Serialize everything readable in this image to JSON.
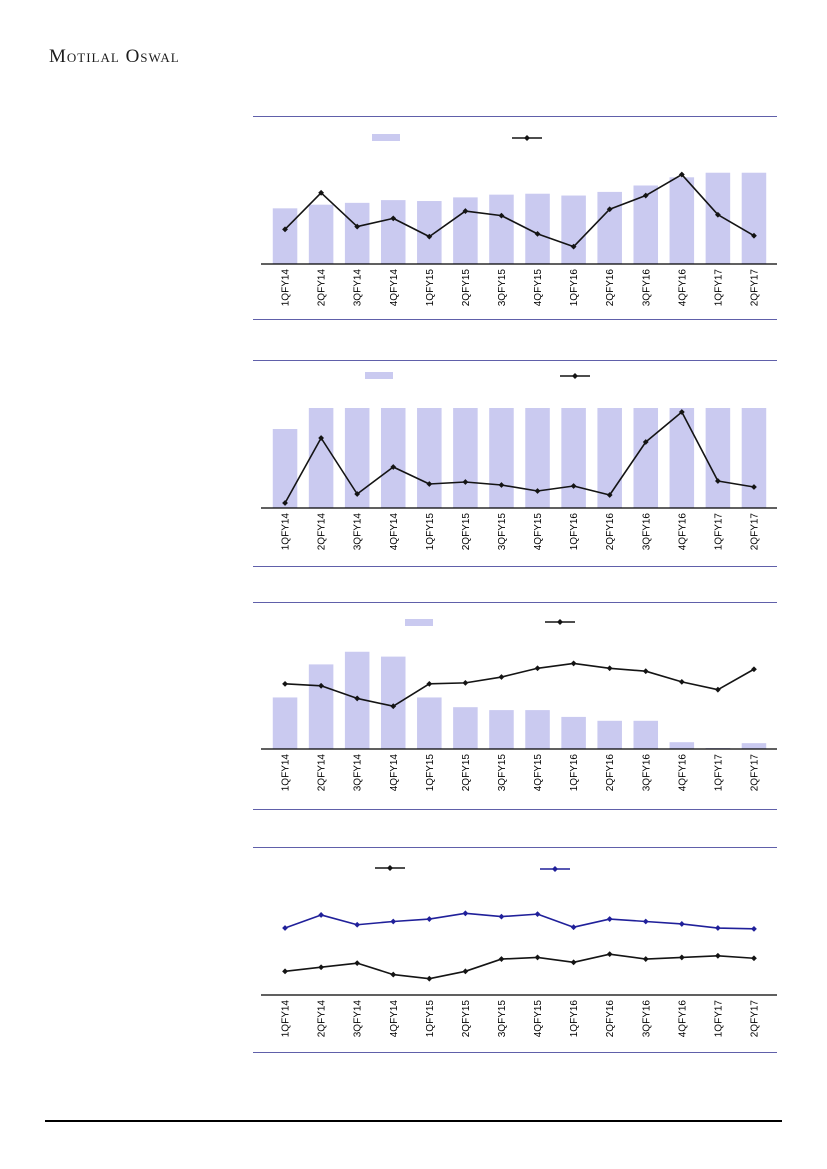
{
  "brand": {
    "name": "Motilal Oswal"
  },
  "colors": {
    "bar_fill": "#cacaf0",
    "chart_border": "#6060aa",
    "line_black": "#141414",
    "line_navy": "#20209a",
    "axis": "#000000",
    "label_text": "#000000",
    "footer_rule": "#000000"
  },
  "categories": [
    "1QFY14",
    "2QFY14",
    "3QFY14",
    "4QFY14",
    "1QFY15",
    "2QFY15",
    "3QFY15",
    "4QFY15",
    "1QFY16",
    "2QFY16",
    "3QFY16",
    "4QFY16",
    "1QFY17",
    "2QFY17"
  ],
  "chart_data": [
    {
      "name": "chart-1",
      "type": "bar",
      "subtype": "bar-with-line-overlay",
      "title": "",
      "categories": [
        "1QFY14",
        "2QFY14",
        "3QFY14",
        "4QFY14",
        "1QFY15",
        "2QFY15",
        "3QFY15",
        "4QFY15",
        "1QFY16",
        "2QFY16",
        "3QFY16",
        "4QFY16",
        "1QFY17",
        "2QFY17"
      ],
      "series": [
        {
          "name": "bars",
          "type": "bar",
          "color_key": "bar_fill",
          "values": [
            61,
            65,
            67,
            70,
            69,
            73,
            76,
            77,
            75,
            79,
            86,
            95,
            100,
            100
          ]
        },
        {
          "name": "line",
          "type": "line",
          "color_key": "line_black",
          "values": [
            38,
            78,
            41,
            50,
            30,
            58,
            53,
            33,
            19,
            60,
            75,
            98,
            54,
            31
          ]
        }
      ],
      "ylim": [
        0,
        126
      ],
      "units": "relative 0-100 scale, estimated from pixel heights (y-axis value labels not visible)",
      "legend": {
        "position": "top",
        "entries": [
          {
            "swatch": "bar",
            "label": ""
          },
          {
            "swatch": "line",
            "label": ""
          }
        ]
      },
      "grid": false
    },
    {
      "name": "chart-2",
      "type": "bar",
      "subtype": "bar-with-line-overlay",
      "title": "",
      "categories": [
        "1QFY14",
        "2QFY14",
        "3QFY14",
        "4QFY14",
        "1QFY15",
        "2QFY15",
        "3QFY15",
        "4QFY15",
        "1QFY16",
        "2QFY16",
        "3QFY16",
        "4QFY16",
        "1QFY17",
        "2QFY17"
      ],
      "series": [
        {
          "name": "bars",
          "type": "bar",
          "color_key": "bar_fill",
          "values": [
            79,
            100,
            100,
            100,
            100,
            100,
            100,
            100,
            100,
            100,
            100,
            100,
            100,
            100
          ]
        },
        {
          "name": "line",
          "type": "line",
          "color_key": "line_black",
          "values": [
            5,
            70,
            14,
            41,
            24,
            26,
            23,
            17,
            22,
            13,
            66,
            96,
            27,
            21
          ]
        }
      ],
      "ylim": [
        0,
        107
      ],
      "units": "relative 0-100 scale, estimated from pixel heights (y-axis value labels not visible)",
      "legend": {
        "position": "top",
        "entries": [
          {
            "swatch": "bar",
            "label": ""
          },
          {
            "swatch": "line",
            "label": ""
          }
        ]
      },
      "grid": false
    },
    {
      "name": "chart-3",
      "type": "bar",
      "subtype": "bar-with-line-overlay",
      "title": "",
      "categories": [
        "1QFY14",
        "2QFY14",
        "3QFY14",
        "4QFY14",
        "1QFY15",
        "2QFY15",
        "3QFY15",
        "4QFY15",
        "1QFY16",
        "2QFY16",
        "3QFY16",
        "4QFY16",
        "1QFY17",
        "2QFY17"
      ],
      "series": [
        {
          "name": "bars",
          "type": "bar",
          "color_key": "bar_fill",
          "values": [
            53,
            87,
            100,
            95,
            53,
            43,
            40,
            40,
            33,
            29,
            29,
            7,
            1,
            6
          ]
        },
        {
          "name": "line",
          "type": "line",
          "color_key": "line_black",
          "values": [
            67,
            65,
            52,
            44,
            67,
            68,
            74,
            83,
            88,
            83,
            80,
            69,
            61,
            82
          ]
        }
      ],
      "ylim": [
        0,
        109
      ],
      "units": "relative 0-100 scale, estimated from pixel heights (y-axis value labels not visible)",
      "legend": {
        "position": "top",
        "entries": [
          {
            "swatch": "bar",
            "label": ""
          },
          {
            "swatch": "line",
            "label": ""
          }
        ]
      },
      "grid": false
    },
    {
      "name": "chart-4",
      "type": "line",
      "subtype": "two-line",
      "title": "",
      "categories": [
        "1QFY14",
        "2QFY14",
        "3QFY14",
        "4QFY14",
        "1QFY15",
        "2QFY15",
        "3QFY15",
        "4QFY15",
        "1QFY16",
        "2QFY16",
        "3QFY16",
        "4QFY16",
        "1QFY17",
        "2QFY17"
      ],
      "series": [
        {
          "name": "line-navy",
          "type": "line",
          "color_key": "line_navy",
          "values": [
            82,
            98,
            86,
            90,
            93,
            100,
            96,
            99,
            83,
            93,
            90,
            87,
            82,
            81
          ]
        },
        {
          "name": "line-black",
          "type": "line",
          "color_key": "line_black",
          "values": [
            29,
            34,
            39,
            25,
            20,
            29,
            44,
            46,
            40,
            50,
            44,
            46,
            48,
            45
          ]
        }
      ],
      "ylim": [
        0,
        131
      ],
      "units": "relative 0-100 scale, estimated from pixel heights (y-axis value labels not visible)",
      "legend": {
        "position": "top",
        "entries": [
          {
            "swatch": "line-black",
            "label": ""
          },
          {
            "swatch": "line-navy",
            "label": ""
          }
        ]
      },
      "grid": false
    }
  ]
}
